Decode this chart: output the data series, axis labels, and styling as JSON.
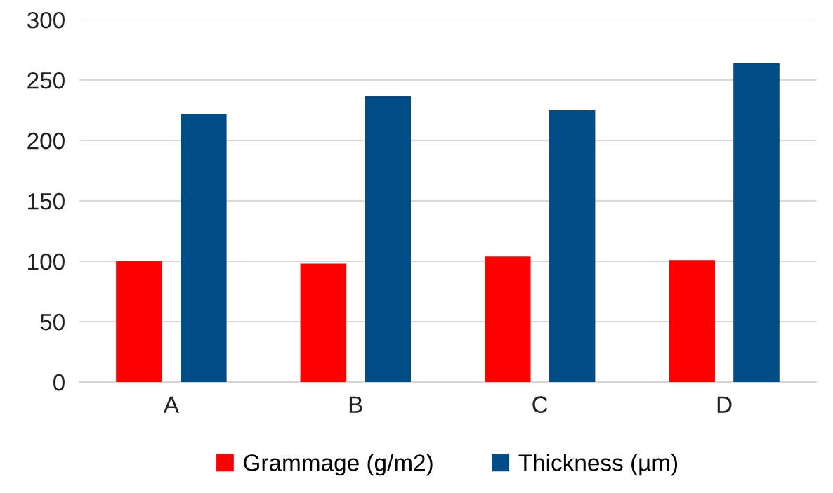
{
  "chart_data": {
    "type": "bar",
    "categories": [
      "A",
      "B",
      "C",
      "D"
    ],
    "series": [
      {
        "name": "Grammage (g/m2)",
        "color": "#ff0000",
        "values": [
          100,
          98,
          104,
          101
        ]
      },
      {
        "name": "Thickness (µm)",
        "color": "#004c87",
        "values": [
          222,
          237,
          225,
          264
        ]
      }
    ],
    "ylim": [
      0,
      300
    ],
    "yticks": [
      0,
      50,
      100,
      150,
      200,
      250,
      300
    ],
    "grid": "y",
    "legend": "bottom"
  }
}
